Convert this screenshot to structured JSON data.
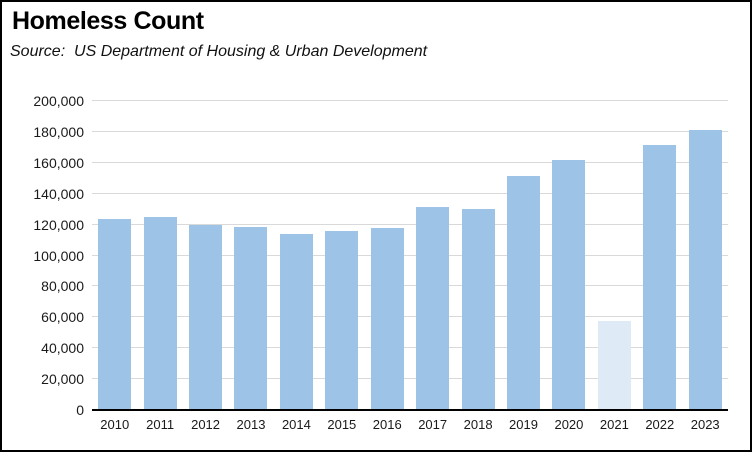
{
  "title": "Homeless Count",
  "source": "Source:  US Department of Housing & Urban Development",
  "colors": {
    "bar": "#9DC3E6",
    "bar_highlight": "#DEEAF6",
    "gridline": "#D9D9D9",
    "axis_line": "#000000",
    "label_text": "#1a1a1a"
  },
  "chart_data": {
    "type": "bar",
    "title": "Homeless Count",
    "subtitle": "Source: US Department of Housing & Urban Development",
    "categories": [
      "2010",
      "2011",
      "2012",
      "2013",
      "2014",
      "2015",
      "2016",
      "2017",
      "2018",
      "2019",
      "2020",
      "2021",
      "2022",
      "2023"
    ],
    "values": [
      123500,
      125000,
      120000,
      118500,
      114000,
      116000,
      118000,
      131500,
      130000,
      151500,
      161500,
      57500,
      171500,
      181500
    ],
    "highlight_category": "2021",
    "highlight_color": "#DEEAF6",
    "bar_color": "#9DC3E6",
    "xlabel": "",
    "ylabel": "",
    "ylim": [
      0,
      200000
    ],
    "ytick_step": 20000,
    "ytick_labels": [
      "0",
      "20,000",
      "40,000",
      "60,000",
      "80,000",
      "100,000",
      "120,000",
      "140,000",
      "160,000",
      "180,000",
      "200,000"
    ],
    "grid": true,
    "legend_position": "none"
  }
}
